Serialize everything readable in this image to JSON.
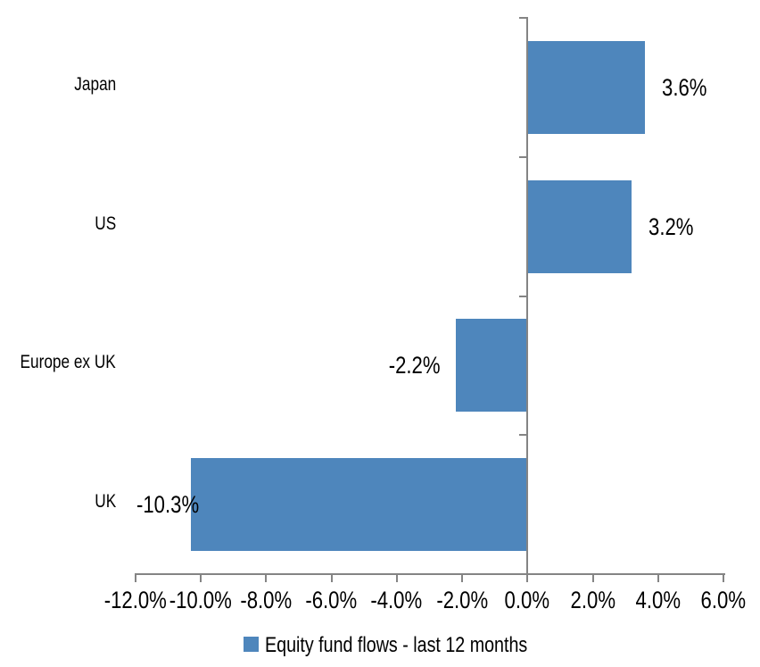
{
  "chart_data": {
    "type": "bar",
    "orientation": "horizontal",
    "title": "",
    "categories": [
      "Japan",
      "US",
      "Europe ex UK",
      "UK"
    ],
    "values": [
      3.6,
      3.2,
      -2.2,
      -10.3
    ],
    "data_labels": [
      "3.6%",
      "3.2%",
      "-2.2%",
      "-10.3%"
    ],
    "series_name": "Equity fund flows - last 12 months",
    "xlabel": "",
    "ylabel": "",
    "xlim": [
      -12,
      6
    ],
    "x_ticks": [
      -12,
      -10,
      -8,
      -6,
      -4,
      -2,
      0,
      2,
      4,
      6
    ],
    "x_tick_labels": [
      "-12.0%",
      "-10.0%",
      "-8.0%",
      "-6.0%",
      "-4.0%",
      "-2.0%",
      "0.0%",
      "2.0%",
      "4.0%",
      "6.0%"
    ],
    "grid": false,
    "legend_position": "bottom",
    "colors": {
      "bar": "#4E86BC",
      "axis": "#848484",
      "text": "#000000"
    }
  },
  "legend": {
    "items": [
      {
        "label": "Equity fund flows - last 12 months",
        "swatch_color": "#4E86BC"
      }
    ]
  }
}
